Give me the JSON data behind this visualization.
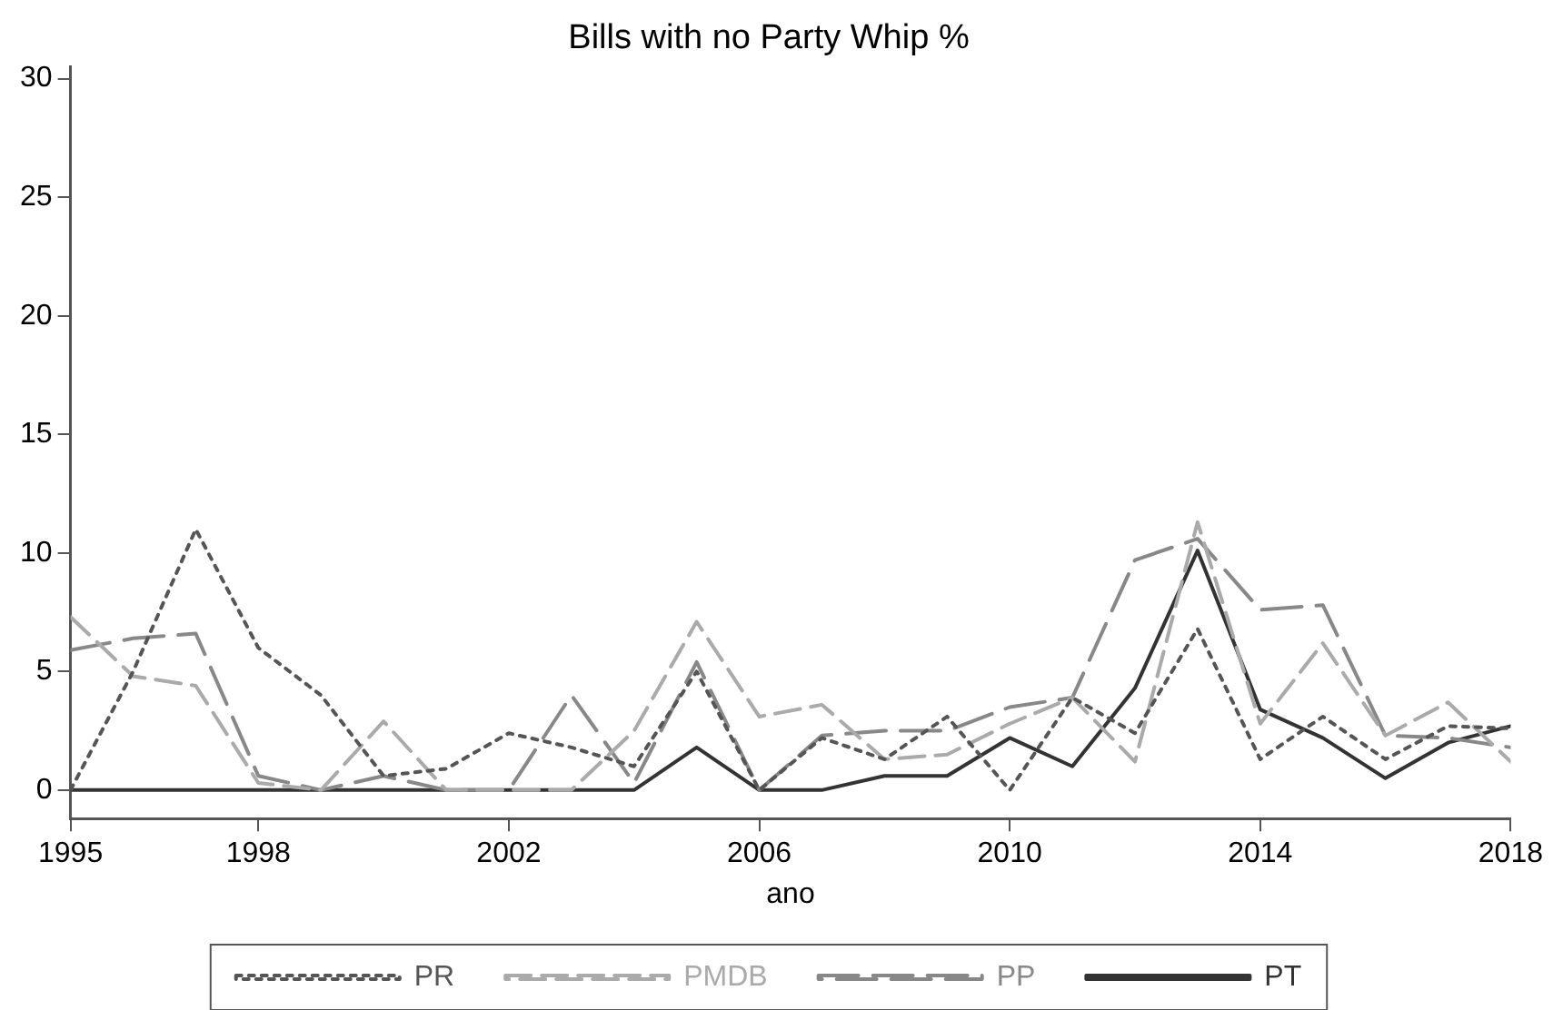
{
  "chart_data": {
    "type": "line",
    "title": "Bills with no Party Whip %",
    "xlabel": "ano",
    "x": [
      1995,
      1996,
      1997,
      1998,
      1999,
      2000,
      2001,
      2002,
      2003,
      2004,
      2005,
      2006,
      2007,
      2008,
      2009,
      2010,
      2011,
      2012,
      2013,
      2014,
      2015,
      2016,
      2017,
      2018
    ],
    "series": [
      {
        "name": "PR",
        "color": "#555555",
        "line_style": "dotted",
        "values": [
          0,
          5,
          11,
          6,
          4,
          0.6,
          0.9,
          2.4,
          1.8,
          1,
          5,
          0,
          2.2,
          1.3,
          3.1,
          0,
          3.9,
          2.4,
          6.8,
          1.3,
          3.1,
          1.3,
          2.7,
          2.6
        ]
      },
      {
        "name": "PMDB",
        "color": "#aaaaaa",
        "line_style": "dashed",
        "values": [
          7.3,
          4.8,
          4.4,
          0.3,
          0,
          2.9,
          0,
          0,
          0,
          2.5,
          7.1,
          3.1,
          3.6,
          1.3,
          1.5,
          2.8,
          3.9,
          1.2,
          11.3,
          2.8,
          6.2,
          2.3,
          3.7,
          1.2
        ]
      },
      {
        "name": "PP",
        "color": "#888888",
        "line_style": "dashed",
        "values": [
          5.9,
          6.4,
          6.6,
          0.6,
          0,
          0.6,
          0,
          0,
          4,
          0.3,
          5.4,
          0,
          2.3,
          2.5,
          2.5,
          3.5,
          3.9,
          9.7,
          10.6,
          7.6,
          7.8,
          2.3,
          2.2,
          1.8
        ]
      },
      {
        "name": "PT",
        "color": "#333333",
        "line_style": "solid",
        "values": [
          0,
          0,
          0,
          0,
          0,
          0,
          0,
          0,
          0,
          0,
          1.8,
          0,
          0,
          0.6,
          0.6,
          2.2,
          1,
          4.3,
          10.1,
          3.4,
          2.2,
          0.5,
          2,
          2.7
        ]
      }
    ],
    "xlim": [
      1995,
      2018
    ],
    "xticks": [
      1995,
      1998,
      2002,
      2006,
      2010,
      2014,
      2018
    ],
    "ylim": [
      -1.2,
      30.5
    ],
    "yticks": [
      0,
      5,
      10,
      15,
      20,
      25,
      30
    ],
    "grid": false,
    "legend": "bottom",
    "marker": "none"
  }
}
